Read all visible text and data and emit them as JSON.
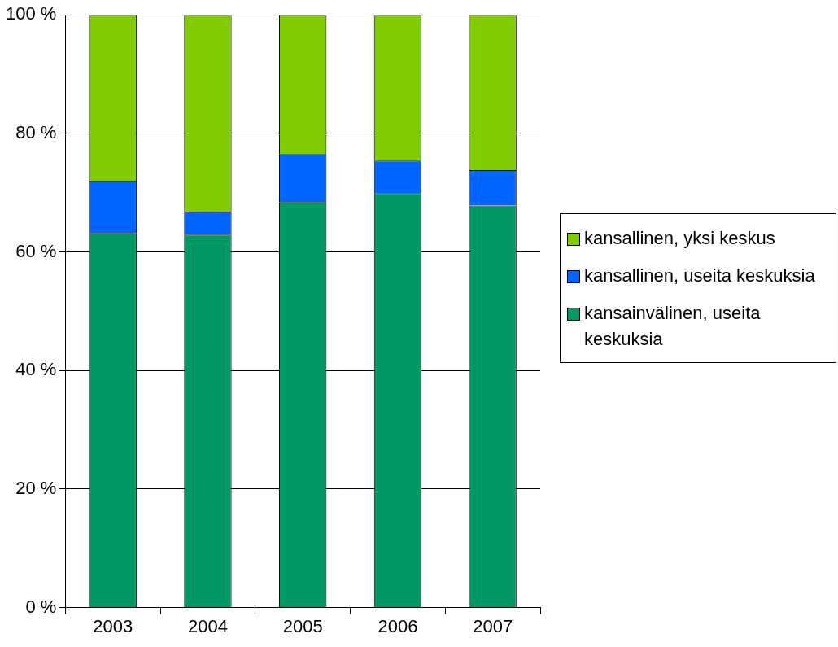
{
  "chart_data": {
    "type": "bar",
    "stacked": true,
    "categories": [
      "2003",
      "2004",
      "2005",
      "2006",
      "2007"
    ],
    "series": [
      {
        "name": "kansainvälinen, useita keskuksia",
        "color": "#009966",
        "values": [
          63.2,
          62.9,
          68.4,
          69.9,
          67.8
        ]
      },
      {
        "name": "kansallinen, useita keskuksia",
        "color": "#0066ff",
        "values": [
          8.7,
          3.9,
          8.1,
          5.5,
          6.0
        ]
      },
      {
        "name": "kansallinen, yksi keskus",
        "color": "#80cc00",
        "values": [
          28.1,
          33.2,
          23.5,
          24.6,
          26.2
        ]
      }
    ],
    "ylim": [
      0,
      100
    ],
    "yticks": [
      {
        "value": 0,
        "label": "0 %"
      },
      {
        "value": 20,
        "label": "20 %"
      },
      {
        "value": 40,
        "label": "40 %"
      },
      {
        "value": 60,
        "label": "60 %"
      },
      {
        "value": 80,
        "label": "80 %"
      },
      {
        "value": 100,
        "label": "100 %"
      }
    ],
    "grid": "y",
    "legend": "right"
  }
}
